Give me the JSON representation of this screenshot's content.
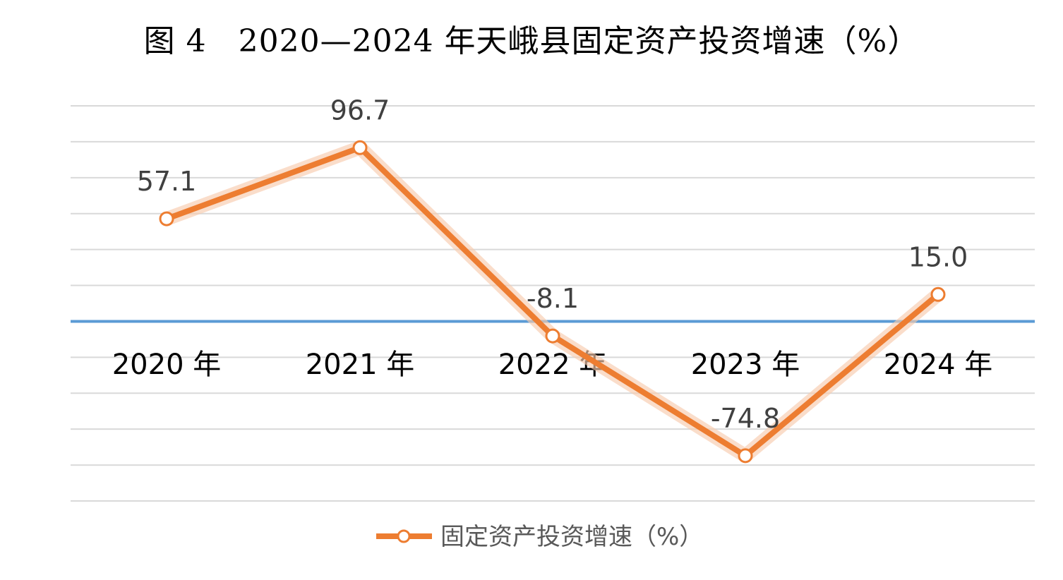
{
  "chart_data": {
    "type": "line",
    "title": "图 4　2020—2024 年天峨县固定资产投资增速（%）",
    "categories": [
      "2020 年",
      "2021 年",
      "2022 年",
      "2023 年",
      "2024 年"
    ],
    "series": [
      {
        "name": "固定资产投资增速（%）",
        "values": [
          57.1,
          96.7,
          -8.1,
          -74.8,
          15.0
        ],
        "labels": [
          "57.1",
          "96.7",
          "-8.1",
          "-74.8",
          "15.0"
        ],
        "color": "#ed7d31"
      }
    ],
    "ylim": [
      -100,
      120
    ],
    "grid": true,
    "legend": "bottom",
    "zero_line_color": "#5b9bd5"
  }
}
